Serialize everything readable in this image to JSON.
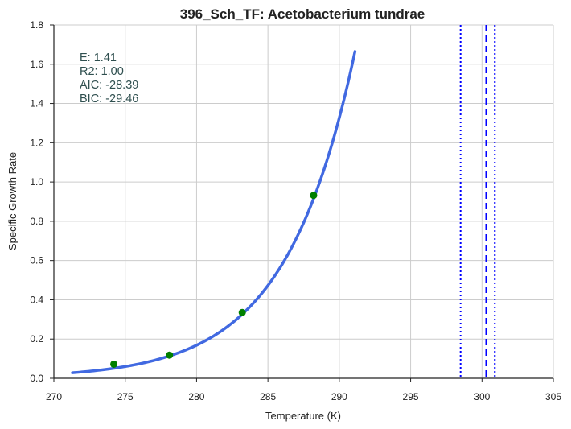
{
  "chart_data": {
    "type": "line",
    "title": "396_Sch_TF: Acetobacterium tundrae",
    "xlabel": "Temperature (K)",
    "ylabel": "Specific Growth Rate",
    "xlim": [
      270,
      305
    ],
    "ylim": [
      0.0,
      1.8
    ],
    "x_ticks": [
      270,
      275,
      280,
      285,
      290,
      295,
      300,
      305
    ],
    "x_tick_labels": [
      "270",
      "275",
      "280",
      "285",
      "290",
      "295",
      "300",
      "305"
    ],
    "y_ticks": [
      0.0,
      0.2,
      0.4,
      0.6,
      0.8,
      1.0,
      1.2,
      1.4,
      1.6,
      1.8
    ],
    "y_tick_labels": [
      "0.0",
      "0.2",
      "0.4",
      "0.6",
      "0.8",
      "1.0",
      "1.2",
      "1.4",
      "1.6",
      "1.8"
    ],
    "grid": true,
    "fit_curve": {
      "color": "#4169e1",
      "x_range": [
        271.3,
        291.1
      ],
      "model": "exponential",
      "y_at_start": 0.028,
      "y_at_end": 1.665
    },
    "observations": {
      "color": "#008000",
      "points": [
        {
          "x": 274.2,
          "y": 0.072
        },
        {
          "x": 278.1,
          "y": 0.118
        },
        {
          "x": 283.2,
          "y": 0.335
        },
        {
          "x": 288.2,
          "y": 0.932
        }
      ]
    },
    "reference_lines": {
      "color": "#0000ff",
      "dashed_x": 300.3,
      "dotted_x": [
        298.5,
        300.9
      ]
    },
    "stats": {
      "color": "#2f4f4f",
      "lines": [
        "E:  1.41",
        "R2:  1.00",
        "AIC: -28.39",
        "BIC: -29.46"
      ]
    }
  }
}
